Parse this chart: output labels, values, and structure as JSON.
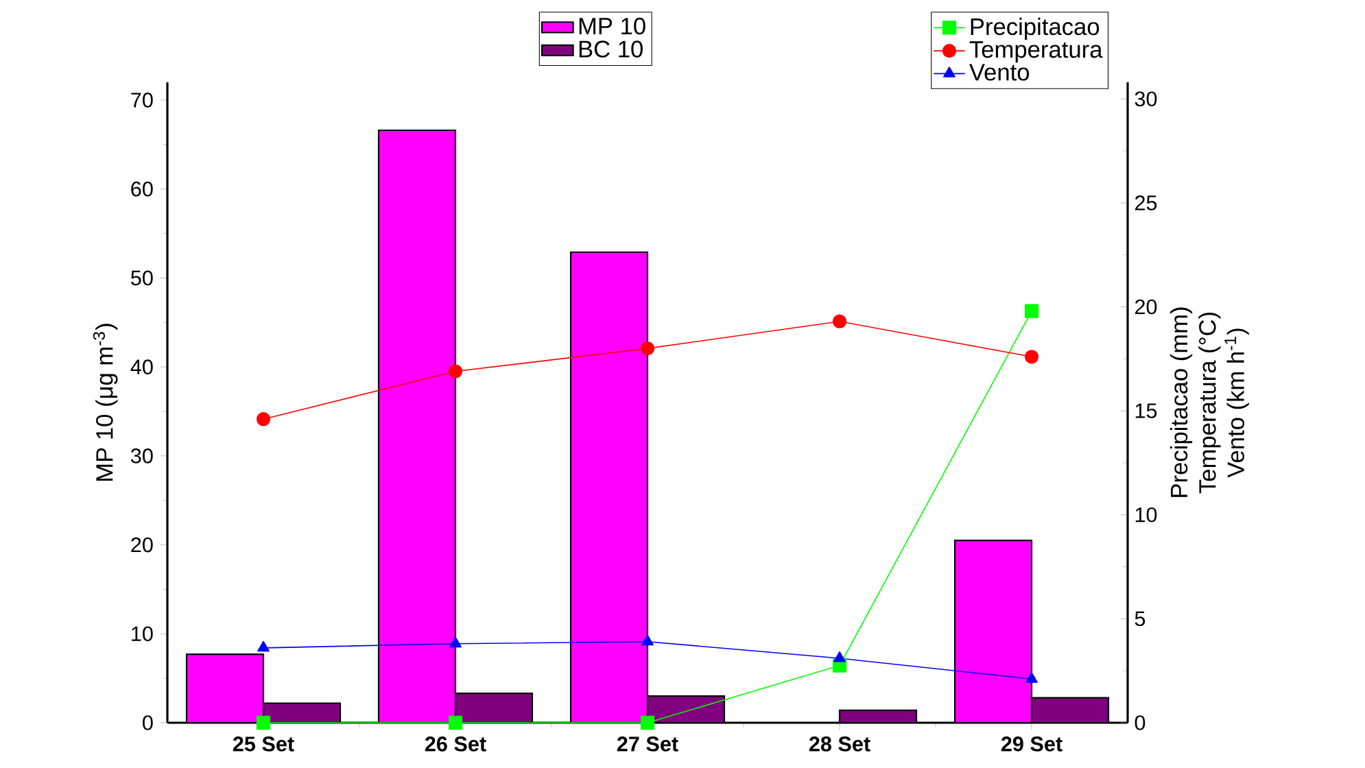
{
  "chart_data": {
    "type": "bar",
    "categories": [
      "25 Set",
      "26 Set",
      "27 Set",
      "28 Set",
      "29 Set"
    ],
    "ylabel": "MP 10 (μg m$^{-3}$)",
    "y2label": [
      "Precipitacao (mm)",
      "Temperatura (°C)",
      "Vento (km h$^{-1}$)"
    ],
    "ylim": [
      0,
      72
    ],
    "yticks": [
      0,
      10,
      20,
      30,
      40,
      50,
      60,
      70
    ],
    "y2lim": [
      0,
      30.8
    ],
    "y2ticks": [
      0,
      5,
      10,
      15,
      20,
      25,
      30
    ],
    "legend": "top",
    "grid": false,
    "series": [
      {
        "name": "MP 10",
        "color": "#ff00ff",
        "values": [
          7.7,
          66.6,
          52.9,
          null,
          20.5
        ]
      },
      {
        "name": "BC 10",
        "color": "#800080",
        "values": [
          2.2,
          3.3,
          3.0,
          1.4,
          2.8
        ]
      },
      {
        "name": "Precipitacao",
        "type": "line",
        "axis": "y2",
        "marker": "square",
        "color": "#00ff00",
        "values": [
          0,
          0,
          0,
          2.75,
          19.8
        ]
      },
      {
        "name": "Temperatura",
        "type": "line",
        "axis": "y2",
        "marker": "circle",
        "color": "#ff0000",
        "values": [
          14.6,
          16.9,
          18.0,
          19.3,
          17.6
        ]
      },
      {
        "name": "Vento",
        "type": "line",
        "axis": "y2",
        "marker": "triangle",
        "color": "#0000ff",
        "values": [
          3.6,
          3.8,
          3.9,
          3.1,
          2.1
        ]
      }
    ]
  }
}
